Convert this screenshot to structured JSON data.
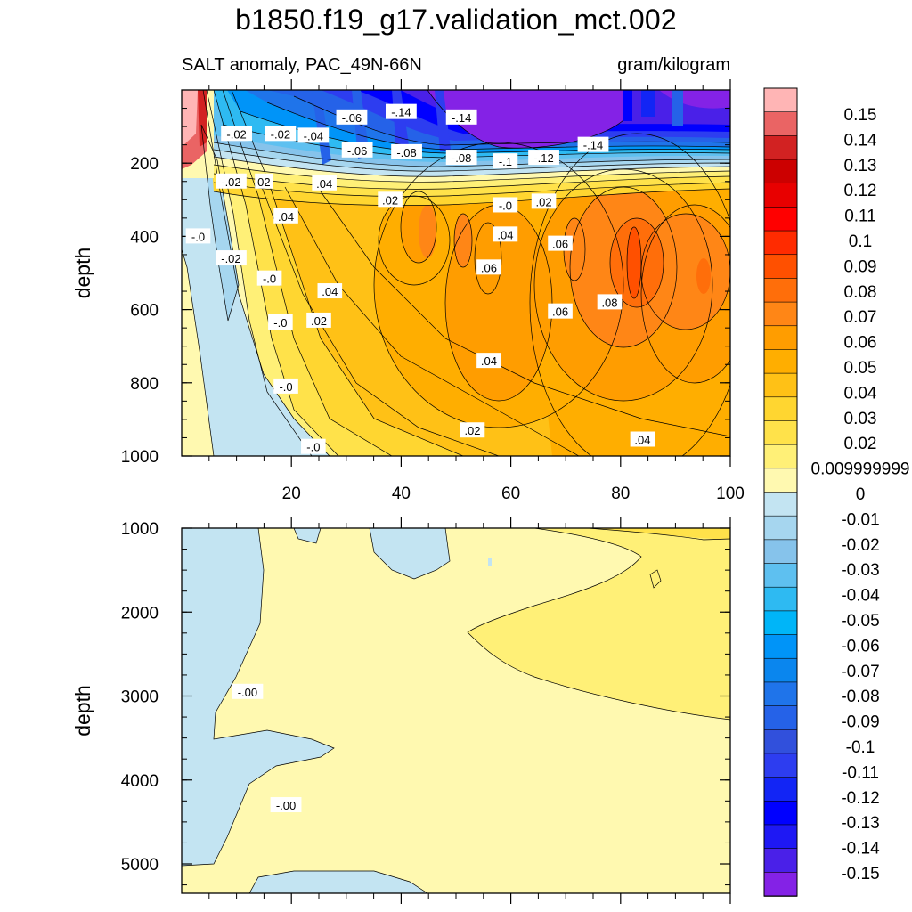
{
  "title": "b1850.f19_g17.validation_mct.002",
  "chart_data": {
    "type": "heatmap",
    "title": "b1850.f19_g17.validation_mct.002",
    "subtitle_left": "SALT anomaly, PAC_49N-66N",
    "subtitle_right": "gram/kilogram",
    "colors": [
      "#ffb5b5",
      "#ea6464",
      "#d22222",
      "#cc0000",
      "#e80000",
      "#ff0000",
      "#ff2b00",
      "#ff5000",
      "#ff6e0a",
      "#ff8616",
      "#ff9d00",
      "#ffae00",
      "#ffc116",
      "#ffd630",
      "#ffe24a",
      "#fff077",
      "#fff9b0",
      "#c3e4f2",
      "#a6d6ef",
      "#86c3eb",
      "#5ec0f0",
      "#2ebaf2",
      "#00b5f8",
      "#0094f8",
      "#0a86ee",
      "#1f74ea",
      "#2562e8",
      "#3150dc",
      "#2d3df0",
      "#1225f5",
      "#0000ff",
      "#1e18f4",
      "#4a20e8",
      "#8422e6"
    ],
    "colorbar_labels": [
      "0.15",
      "0.14",
      "0.13",
      "0.12",
      "0.11",
      "0.1",
      "0.09",
      "0.08",
      "0.07",
      "0.06",
      "0.05",
      "0.04",
      "0.03",
      "0.02",
      "0.009999999",
      "0",
      "-0.01",
      "-0.02",
      "-0.03",
      "-0.04",
      "-0.05",
      "-0.06",
      "-0.07",
      "-0.08",
      "-0.09",
      "-0.1",
      "-0.11",
      "-0.12",
      "-0.13",
      "-0.14",
      "-0.15"
    ],
    "panels": [
      {
        "ylabel": "depth",
        "ylim": [
          0,
          1000
        ],
        "xlim": [
          0,
          100
        ],
        "yticks": [
          "200",
          "400",
          "600",
          "800",
          "1000"
        ],
        "xticks": [
          "20",
          "40",
          "60",
          "80",
          "100"
        ],
        "contour_labels": [
          {
            "t": "-.02",
            "x": 10,
            "y": 120
          },
          {
            "t": "-.02",
            "x": 18,
            "y": 120
          },
          {
            "t": "-.04",
            "x": 24,
            "y": 125
          },
          {
            "t": "-.06",
            "x": 31,
            "y": 75
          },
          {
            "t": "-.14",
            "x": 40,
            "y": 60
          },
          {
            "t": "-.14",
            "x": 51,
            "y": 75
          },
          {
            "t": "-.06",
            "x": 32,
            "y": 165
          },
          {
            "t": "-.08",
            "x": 41,
            "y": 170
          },
          {
            "t": "-.08",
            "x": 51,
            "y": 185
          },
          {
            "t": "-.1",
            "x": 59,
            "y": 195
          },
          {
            "t": "-.12",
            "x": 66,
            "y": 185
          },
          {
            "t": "-.14",
            "x": 75,
            "y": 150
          },
          {
            "t": "-.02",
            "x": 9,
            "y": 250
          },
          {
            "t": "02",
            "x": 15,
            "y": 250
          },
          {
            "t": ".04",
            "x": 26,
            "y": 255
          },
          {
            "t": ".02",
            "x": 38,
            "y": 300
          },
          {
            "t": "-.0",
            "x": 59,
            "y": 315
          },
          {
            "t": ".02",
            "x": 66,
            "y": 305
          },
          {
            "t": "-.0",
            "x": 3,
            "y": 400
          },
          {
            "t": ".04",
            "x": 19,
            "y": 345
          },
          {
            "t": "-.02",
            "x": 9,
            "y": 460
          },
          {
            "t": ".04",
            "x": 59,
            "y": 395
          },
          {
            "t": ".06",
            "x": 69,
            "y": 420
          },
          {
            "t": "-.0",
            "x": 16,
            "y": 515
          },
          {
            "t": ".04",
            "x": 27,
            "y": 550
          },
          {
            "t": ".06",
            "x": 56,
            "y": 485
          },
          {
            "t": ".08",
            "x": 78,
            "y": 580
          },
          {
            "t": ".06",
            "x": 69,
            "y": 605
          },
          {
            "t": "-.0",
            "x": 18,
            "y": 635
          },
          {
            "t": ".02",
            "x": 25,
            "y": 630
          },
          {
            "t": ".04",
            "x": 56,
            "y": 740
          },
          {
            "t": "-.0",
            "x": 19,
            "y": 810
          },
          {
            "t": ".02",
            "x": 53,
            "y": 930
          },
          {
            "t": ".04",
            "x": 84,
            "y": 955
          },
          {
            "t": "-.0",
            "x": 24,
            "y": 975
          }
        ]
      },
      {
        "ylabel": "depth",
        "ylim": [
          1000,
          5350
        ],
        "xlim": [
          0,
          100
        ],
        "yticks": [
          "1000",
          "2000",
          "3000",
          "4000",
          "5000"
        ],
        "contour_labels": [
          {
            "t": "-.00",
            "x": 12,
            "y": 2950
          },
          {
            "t": "-.00",
            "x": 19,
            "y": 4300
          }
        ]
      }
    ]
  }
}
